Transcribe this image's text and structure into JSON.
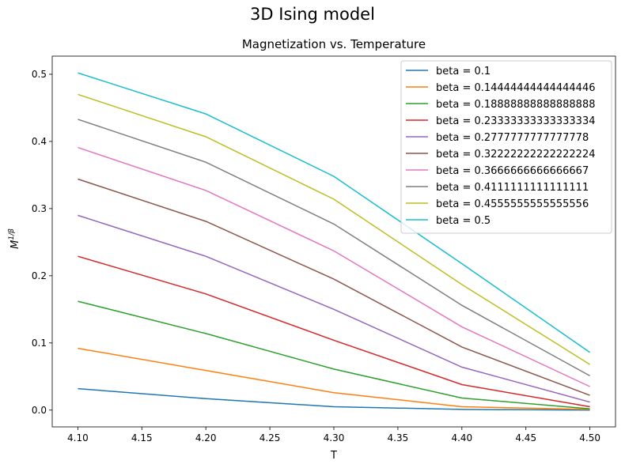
{
  "figure": {
    "suptitle": "3D Ising model"
  },
  "chart_data": {
    "type": "line",
    "title": "Magnetization vs. Temperature",
    "xlabel": "T",
    "ylabel_base": "M",
    "ylabel_exp": "1/β",
    "x": [
      4.1,
      4.2,
      4.3,
      4.4,
      4.5
    ],
    "xlim": [
      4.08,
      4.52
    ],
    "ylim": [
      -0.025,
      0.527
    ],
    "xticks": [
      "4.10",
      "4.15",
      "4.20",
      "4.25",
      "4.30",
      "4.35",
      "4.40",
      "4.45",
      "4.50"
    ],
    "yticks": [
      "0.0",
      "0.1",
      "0.2",
      "0.3",
      "0.4",
      "0.5"
    ],
    "grid": false,
    "legend_position": "top-right",
    "series": [
      {
        "name": "beta = 0.1",
        "color": "#1f77b4",
        "values": [
          0.032,
          0.017,
          0.005,
          0.001,
          0.0
        ]
      },
      {
        "name": "beta = 0.14444444444444446",
        "color": "#ff7f0e",
        "values": [
          0.092,
          0.059,
          0.026,
          0.005,
          0.001
        ]
      },
      {
        "name": "beta = 0.18888888888888888",
        "color": "#2ca02c",
        "values": [
          0.162,
          0.114,
          0.061,
          0.018,
          0.002
        ]
      },
      {
        "name": "beta = 0.23333333333333334",
        "color": "#d62728",
        "values": [
          0.229,
          0.173,
          0.104,
          0.038,
          0.005
        ]
      },
      {
        "name": "beta = 0.2777777777777778",
        "color": "#9467bd",
        "values": [
          0.29,
          0.229,
          0.15,
          0.064,
          0.012
        ]
      },
      {
        "name": "beta = 0.32222222222222224",
        "color": "#8c564b",
        "values": [
          0.344,
          0.281,
          0.195,
          0.094,
          0.022
        ]
      },
      {
        "name": "beta = 0.3666666666666667",
        "color": "#e377c2",
        "values": [
          0.391,
          0.327,
          0.237,
          0.124,
          0.035
        ]
      },
      {
        "name": "beta = 0.4111111111111111",
        "color": "#7f7f7f",
        "values": [
          0.433,
          0.369,
          0.277,
          0.156,
          0.051
        ]
      },
      {
        "name": "beta = 0.4555555555555556",
        "color": "#bcbd22",
        "values": [
          0.47,
          0.407,
          0.314,
          0.187,
          0.068
        ]
      },
      {
        "name": "beta = 0.5",
        "color": "#17becf",
        "values": [
          0.502,
          0.441,
          0.348,
          0.218,
          0.086
        ]
      }
    ]
  }
}
